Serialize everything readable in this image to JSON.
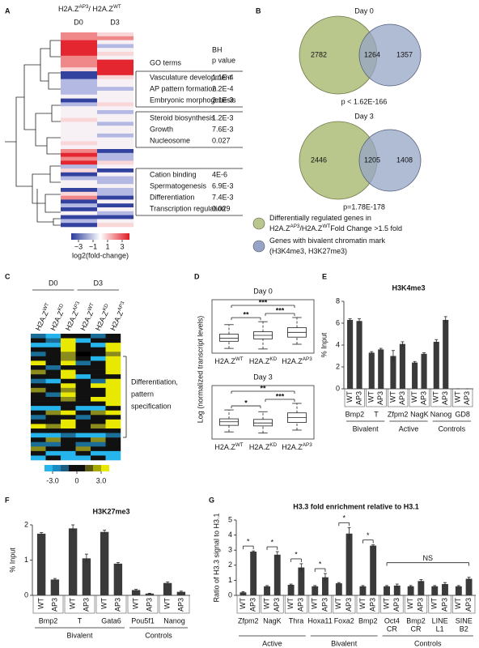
{
  "panel_labels": [
    "A",
    "B",
    "C",
    "D",
    "E",
    "F",
    "G"
  ],
  "heatmap_a": {
    "title_parts": [
      {
        "text": "H2A.Z"
      },
      {
        "text": "AP3",
        "sup": true
      },
      {
        "text": "/ H2A.Z"
      },
      {
        "text": "WT",
        "sup": true
      }
    ],
    "columns": [
      "D0",
      "D3"
    ],
    "go_header": "GO terms",
    "p_header": [
      "BH",
      "p value"
    ],
    "go_groups": [
      [
        {
          "term": "Vasculature development",
          "p": "1.1E-4"
        },
        {
          "term": "AP pattern formation",
          "p": "2.2E-4"
        },
        {
          "term": "Embryonic morphogenesis",
          "p": "2.1E-3"
        }
      ],
      [
        {
          "term": "Steroid biosynthesis",
          "p": "1.2E-3"
        },
        {
          "term": "Growth",
          "p": "7.6E-3"
        },
        {
          "term": "Nucleosome",
          "p": "0.027"
        }
      ],
      [
        {
          "term": "Cation binding",
          "p": "4E-6"
        },
        {
          "term": "Spermatogenesis",
          "p": "6.9E-3"
        },
        {
          "term": "Differentiation",
          "p": "7.4E-3"
        },
        {
          "term": "Transcription regulation",
          "p": "0.029"
        }
      ]
    ],
    "colorbar_lim": [
      -4,
      4
    ],
    "colorbar_ticks": [
      {
        "value": -3,
        "label": "−3"
      },
      {
        "value": -1,
        "label": "−1"
      },
      1,
      3
    ],
    "colorbar_label": "log2(fold-change)"
  },
  "venn_b": {
    "venns": [
      {
        "title": "Day 0",
        "left": 2782,
        "both": 1264,
        "right": 1357,
        "p": "p < 1.62E-166"
      },
      {
        "title": "Day 3",
        "left": 2446,
        "both": 1205,
        "right": 1408,
        "p": "p=1.78E-178"
      }
    ],
    "legend": [
      {
        "color": "#b9c68c",
        "lines": [
          [
            {
              "text": "Differentially regulated genes in"
            }
          ],
          [
            {
              "text": "H2A.Z"
            },
            {
              "text": "AP3",
              "sup": true
            },
            {
              "text": "/H2A.Z"
            },
            {
              "text": "WT",
              "sup": true
            },
            {
              "text": "Fold Change >1.5 fold"
            }
          ]
        ]
      },
      {
        "color": "#95a4c6",
        "lines": [
          [
            {
              "text": "Genes with bivalent chromatin mark"
            }
          ],
          [
            {
              "text": "(H3K4me3, H3K27me3)"
            }
          ]
        ]
      }
    ]
  },
  "heatmap_c": {
    "column_groups": [
      "D0",
      "D3"
    ],
    "column_labels": [
      [
        {
          "text": "H2A.Z"
        },
        {
          "text": "WT",
          "sup": true
        }
      ],
      [
        {
          "text": "H2A.Z"
        },
        {
          "text": "KD",
          "sup": true
        }
      ],
      [
        {
          "text": "H2A.Z"
        },
        {
          "text": "AP3",
          "sup": true
        }
      ],
      [
        {
          "text": "H2A.Z"
        },
        {
          "text": "WT",
          "sup": true
        }
      ],
      [
        {
          "text": "H2A.Z"
        },
        {
          "text": "KD",
          "sup": true
        }
      ],
      [
        {
          "text": "H2A.Z"
        },
        {
          "text": "AP3",
          "sup": true
        }
      ]
    ],
    "annotation": [
      "Differentiation,",
      "pattern",
      "specification"
    ],
    "colorbar_lim": [
      -4,
      4
    ],
    "colorbar_ticks": [
      {
        "value": -3,
        "label": "-3.0"
      },
      0,
      {
        "value": 3,
        "label": "3.0"
      }
    ]
  },
  "chart_data": [
    {
      "type": "box",
      "title": "Day 0",
      "y_label": "Log (normalized transcript levels)",
      "categories": [
        [
          {
            "text": "H2A.Z"
          },
          {
            "text": "WT",
            "sup": true
          }
        ],
        [
          {
            "text": "H2A.Z"
          },
          {
            "text": "KD",
            "sup": true
          }
        ],
        [
          {
            "text": "H2A.Z"
          },
          {
            "text": "AP3",
            "sup": true
          }
        ]
      ],
      "ylim": [
        -3,
        6
      ],
      "boxes": [
        {
          "low": -2.2,
          "q1": -1.0,
          "median": -0.5,
          "q3": 0.2,
          "high": 1.8
        },
        {
          "low": -2.3,
          "q1": -0.6,
          "median": 0.0,
          "q3": 0.6,
          "high": 2.3
        },
        {
          "low": -1.5,
          "q1": -0.3,
          "median": 0.5,
          "q3": 1.3,
          "high": 3.0
        }
      ],
      "comparisons": [
        {
          "text": "**",
          "between": [
            0,
            1
          ]
        },
        {
          "text": "***",
          "between": [
            1,
            2
          ]
        },
        {
          "text": "***",
          "between": [
            0,
            2
          ]
        }
      ]
    },
    {
      "type": "box",
      "title": "Day 3",
      "categories": [
        [
          {
            "text": "H2A.Z"
          },
          {
            "text": "WT",
            "sup": true
          }
        ],
        [
          {
            "text": "H2A.Z"
          },
          {
            "text": "KD",
            "sup": true
          }
        ],
        [
          {
            "text": "H2A.Z"
          },
          {
            "text": "AP3",
            "sup": true
          }
        ]
      ],
      "ylim": [
        -3,
        6
      ],
      "boxes": [
        {
          "low": -1.8,
          "q1": -0.7,
          "median": -0.1,
          "q3": 0.4,
          "high": 1.9
        },
        {
          "low": -2.0,
          "q1": -0.8,
          "median": -0.3,
          "q3": 0.3,
          "high": 1.6
        },
        {
          "low": -1.5,
          "q1": -0.2,
          "median": 0.6,
          "q3": 1.4,
          "high": 3.0
        }
      ],
      "comparisons": [
        {
          "text": "*",
          "between": [
            0,
            1
          ]
        },
        {
          "text": "***",
          "between": [
            1,
            2
          ]
        },
        {
          "text": "**",
          "between": [
            0,
            2
          ]
        }
      ]
    },
    {
      "type": "bar",
      "title": "H3K4me3",
      "y_label": "% Input",
      "categories": [
        "Bmp2",
        "T",
        "Zfpm2",
        "NagK",
        "Nanog",
        "GD8"
      ],
      "series": [
        {
          "name": "WT",
          "color": "#3a3a3a",
          "values": [
            6.3,
            3.3,
            3.0,
            2.4,
            4.3,
            0
          ],
          "errors": [
            0.1,
            0.1,
            0.5,
            0.1,
            0.2,
            0
          ]
        },
        {
          "name": "AP3",
          "color": "#3a3a3a",
          "values": [
            6.2,
            3.6,
            4.1,
            3.2,
            6.3,
            0
          ],
          "errors": [
            0.2,
            0.1,
            0.2,
            0.1,
            0.3,
            0
          ]
        }
      ],
      "ylim": [
        0,
        8
      ],
      "yticks": [
        0,
        2,
        4,
        6,
        8
      ],
      "groups": [
        {
          "name": "Bivalent",
          "members": [
            "Bmp2",
            "T"
          ]
        },
        {
          "name": "Active",
          "members": [
            "Zfpm2",
            "NagK"
          ]
        },
        {
          "name": "Controls",
          "members": [
            "Nanog",
            "GD8"
          ]
        }
      ]
    },
    {
      "type": "bar",
      "title": "H3K27me3",
      "y_label": "% Input",
      "categories": [
        "Bmp2",
        "T",
        "Gata6",
        "Pou5f1",
        "Nanog"
      ],
      "series": [
        {
          "name": "WT",
          "color": "#3a3a3a",
          "values": [
            1.75,
            1.9,
            1.8,
            0.15,
            0.35
          ],
          "errors": [
            0.03,
            0.1,
            0.05,
            0.02,
            0.03
          ]
        },
        {
          "name": "AP3",
          "color": "#3a3a3a",
          "values": [
            0.45,
            1.05,
            0.9,
            0.05,
            0.1
          ],
          "errors": [
            0.03,
            0.12,
            0.03,
            0.01,
            0.02
          ]
        }
      ],
      "ylim": [
        0,
        2
      ],
      "yticks": [
        0,
        1,
        2
      ],
      "groups": [
        {
          "name": "Bivalent",
          "members": [
            "Bmp2",
            "T",
            "Gata6"
          ]
        },
        {
          "name": "Controls",
          "members": [
            "Pou5f1",
            "Nanog"
          ]
        }
      ]
    },
    {
      "type": "bar",
      "title": "H3.3 fold enrichment relative to H3.1",
      "y_label": "Ratio of H3.3 signal to H3.1",
      "categories": [
        [
          "Zfpm2"
        ],
        [
          "NagK"
        ],
        [
          "Thra"
        ],
        [
          "Hoxa11"
        ],
        [
          "Foxa2"
        ],
        [
          "Bmp2"
        ],
        [
          "Oct4",
          "CR"
        ],
        [
          "Bmp2",
          "CR"
        ],
        [
          "LINE",
          "L1"
        ],
        [
          "SINE",
          "B2"
        ]
      ],
      "series": [
        {
          "name": "WT",
          "color": "#3a3a3a",
          "values": [
            0.2,
            0.6,
            0.7,
            0.6,
            0.8,
            0.6,
            0.6,
            0.6,
            0.6,
            0.6
          ],
          "errors": [
            0.05,
            0.05,
            0.05,
            0.05,
            0.05,
            0.05,
            0.05,
            0.05,
            0.05,
            0.05
          ]
        },
        {
          "name": "AP3",
          "color": "#3a3a3a",
          "values": [
            2.9,
            2.7,
            1.85,
            1.2,
            4.1,
            3.3,
            0.65,
            0.95,
            0.75,
            1.1
          ],
          "errors": [
            0.05,
            0.2,
            0.25,
            0.25,
            0.4,
            0.05,
            0.1,
            0.1,
            0.1,
            0.1
          ]
        }
      ],
      "ylim": [
        0,
        5
      ],
      "yticks": [
        0,
        1,
        2,
        3,
        4,
        5
      ],
      "groups": [
        {
          "name": "Active",
          "members": [
            [
              "Zfpm2"
            ],
            [
              "NagK"
            ],
            [
              "Thra"
            ]
          ]
        },
        {
          "name": "Bivalent",
          "members": [
            [
              "Hoxa11"
            ],
            [
              "Foxa2"
            ],
            [
              "Bmp2"
            ]
          ]
        },
        {
          "name": "Controls",
          "members": [
            [
              "Oct4",
              "CR"
            ],
            [
              "Bmp2",
              "CR"
            ],
            [
              "LINE",
              "L1"
            ],
            [
              "SINE",
              "B2"
            ]
          ]
        }
      ],
      "annotations": [
        {
          "text": "*",
          "members": [
            [
              "Zfpm2"
            ]
          ]
        },
        {
          "text": "*",
          "members": [
            [
              "NagK"
            ]
          ]
        },
        {
          "text": "*",
          "members": [
            [
              "Thra"
            ]
          ]
        },
        {
          "text": "*",
          "members": [
            [
              "Hoxa11"
            ]
          ]
        },
        {
          "text": "*",
          "members": [
            [
              "Foxa2"
            ]
          ]
        },
        {
          "text": "*",
          "members": [
            [
              "Bmp2"
            ]
          ]
        },
        {
          "text": "NS",
          "members": [
            [
              "Oct4",
              "CR"
            ],
            [
              "Bmp2",
              "CR"
            ],
            [
              "LINE",
              "L1"
            ],
            [
              "SINE",
              "B2"
            ]
          ]
        }
      ]
    }
  ]
}
